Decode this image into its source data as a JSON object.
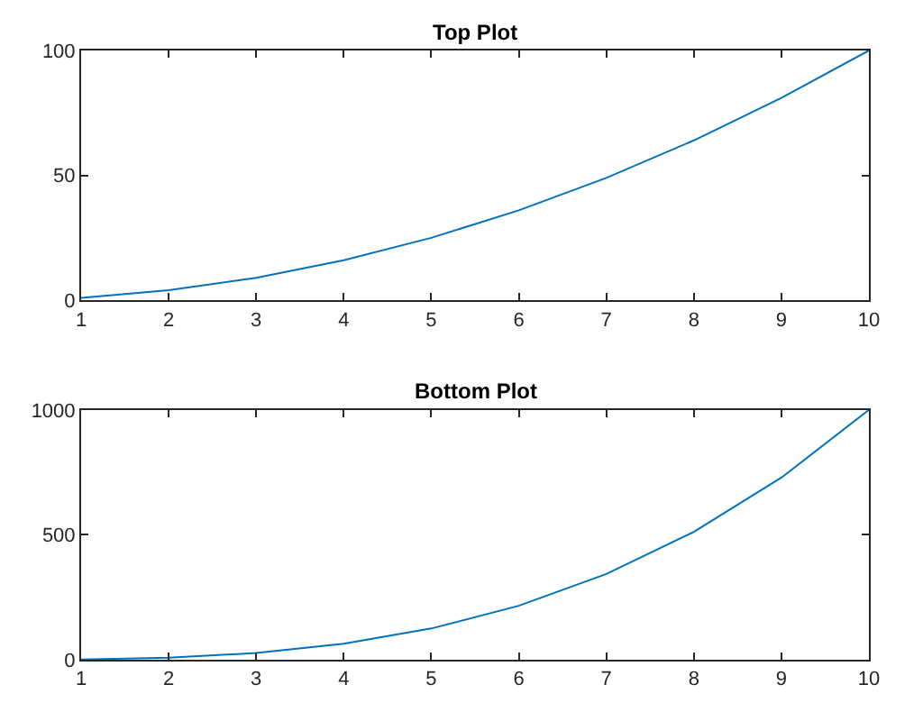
{
  "chart_data": [
    {
      "type": "line",
      "title": "Top Plot",
      "x": [
        1,
        2,
        3,
        4,
        5,
        6,
        7,
        8,
        9,
        10
      ],
      "series": [
        {
          "color": "#0072bd",
          "values": [
            1,
            4,
            9,
            16,
            25,
            36,
            49,
            64,
            81,
            100
          ]
        }
      ],
      "xlim": [
        1,
        10
      ],
      "xticks": [
        1,
        2,
        3,
        4,
        5,
        6,
        7,
        8,
        9,
        10
      ],
      "ylim": [
        0,
        100
      ],
      "yticks": [
        0,
        50,
        100
      ],
      "marker": "none",
      "line_style": "solid"
    },
    {
      "type": "line",
      "title": "Bottom Plot",
      "x": [
        1,
        2,
        3,
        4,
        5,
        6,
        7,
        8,
        9,
        10
      ],
      "series": [
        {
          "color": "#0072bd",
          "values": [
            1,
            8,
            27,
            64,
            125,
            216,
            343,
            512,
            729,
            1000
          ]
        }
      ],
      "xlim": [
        1,
        10
      ],
      "xticks": [
        1,
        2,
        3,
        4,
        5,
        6,
        7,
        8,
        9,
        10
      ],
      "ylim": [
        0,
        1000
      ],
      "yticks": [
        0,
        500,
        1000
      ],
      "marker": "none",
      "line_style": "solid"
    }
  ]
}
